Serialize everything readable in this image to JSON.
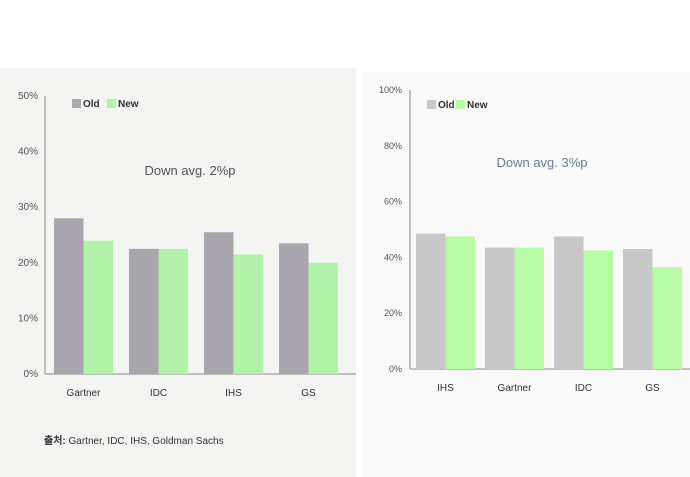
{
  "chart_data": [
    {
      "type": "bar",
      "categories": [
        "Gartner",
        "IDC",
        "IHS",
        "GS"
      ],
      "series": [
        {
          "name": "Old",
          "values": [
            28,
            22.5,
            25.5,
            23.5
          ]
        },
        {
          "name": "New",
          "values": [
            24,
            22.5,
            21.5,
            20
          ]
        }
      ],
      "title": "",
      "annotation": "Down avg. 2%p",
      "xlabel": "",
      "ylabel": "",
      "ylim": [
        0,
        50
      ],
      "yticks": [
        "0%",
        "10%",
        "20%",
        "30%",
        "40%",
        "50%"
      ],
      "colors": {
        "Old": "#aaa6ae",
        "New": "#b3f3a9"
      }
    },
    {
      "type": "bar",
      "categories": [
        "IHS",
        "Gartner",
        "IDC",
        "GS"
      ],
      "series": [
        {
          "name": "Old",
          "values": [
            48.5,
            43.5,
            47.5,
            43
          ]
        },
        {
          "name": "New",
          "values": [
            47.5,
            43.5,
            42.5,
            36.5
          ]
        }
      ],
      "title": "",
      "annotation": "Down avg. 3%p",
      "xlabel": "",
      "ylabel": "",
      "ylim": [
        0,
        100
      ],
      "yticks": [
        "0%",
        "20%",
        "40%",
        "60%",
        "80%",
        "100%"
      ],
      "colors": {
        "Old": "#c8c8c8",
        "New": "#b8fba6"
      }
    }
  ],
  "source": {
    "label": "출처:",
    "text": "Gartner, IDC, IHS, Goldman Sachs"
  }
}
